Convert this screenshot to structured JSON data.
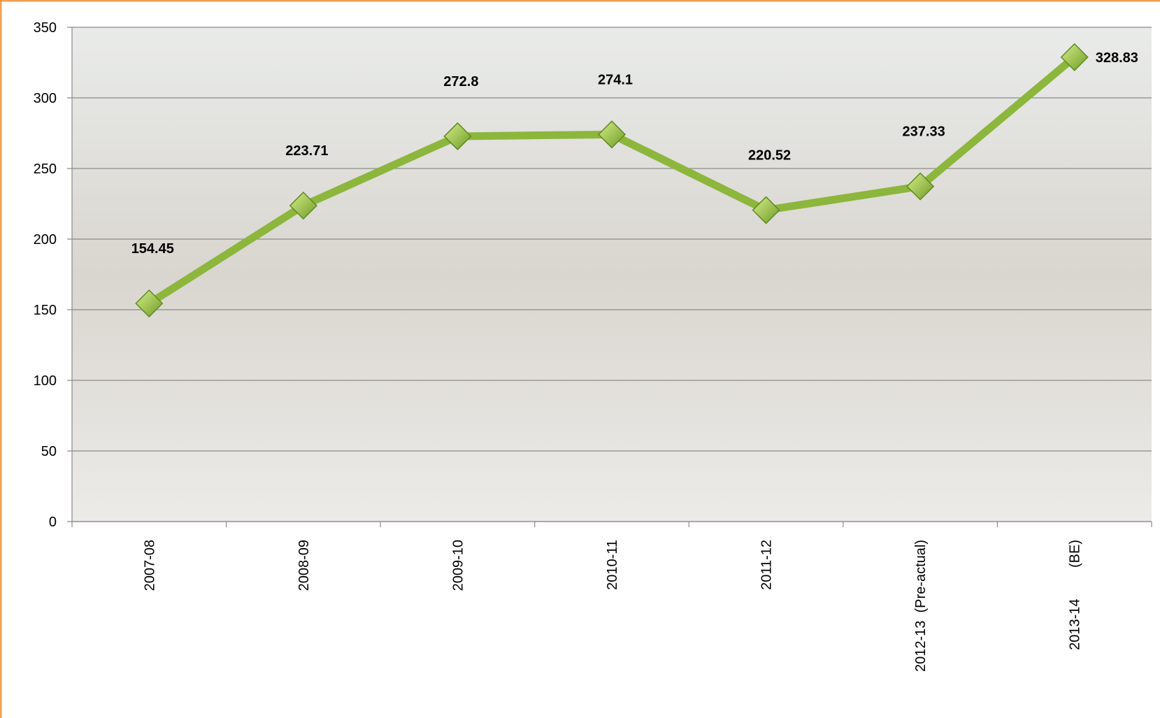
{
  "chart_data": {
    "type": "line",
    "categories": [
      "2007-08",
      "2008-09",
      "2009-10",
      "2010-11",
      "2011-12",
      "2012-13  (Pre-actual)",
      "2013-14        (BE)"
    ],
    "values": [
      154.45,
      223.71,
      272.8,
      274.1,
      220.52,
      237.33,
      328.83
    ],
    "color": "#8cb63c",
    "ylim": [
      0,
      350
    ],
    "yticks": [
      0,
      50,
      100,
      150,
      200,
      250,
      300,
      350
    ],
    "grid": true
  }
}
